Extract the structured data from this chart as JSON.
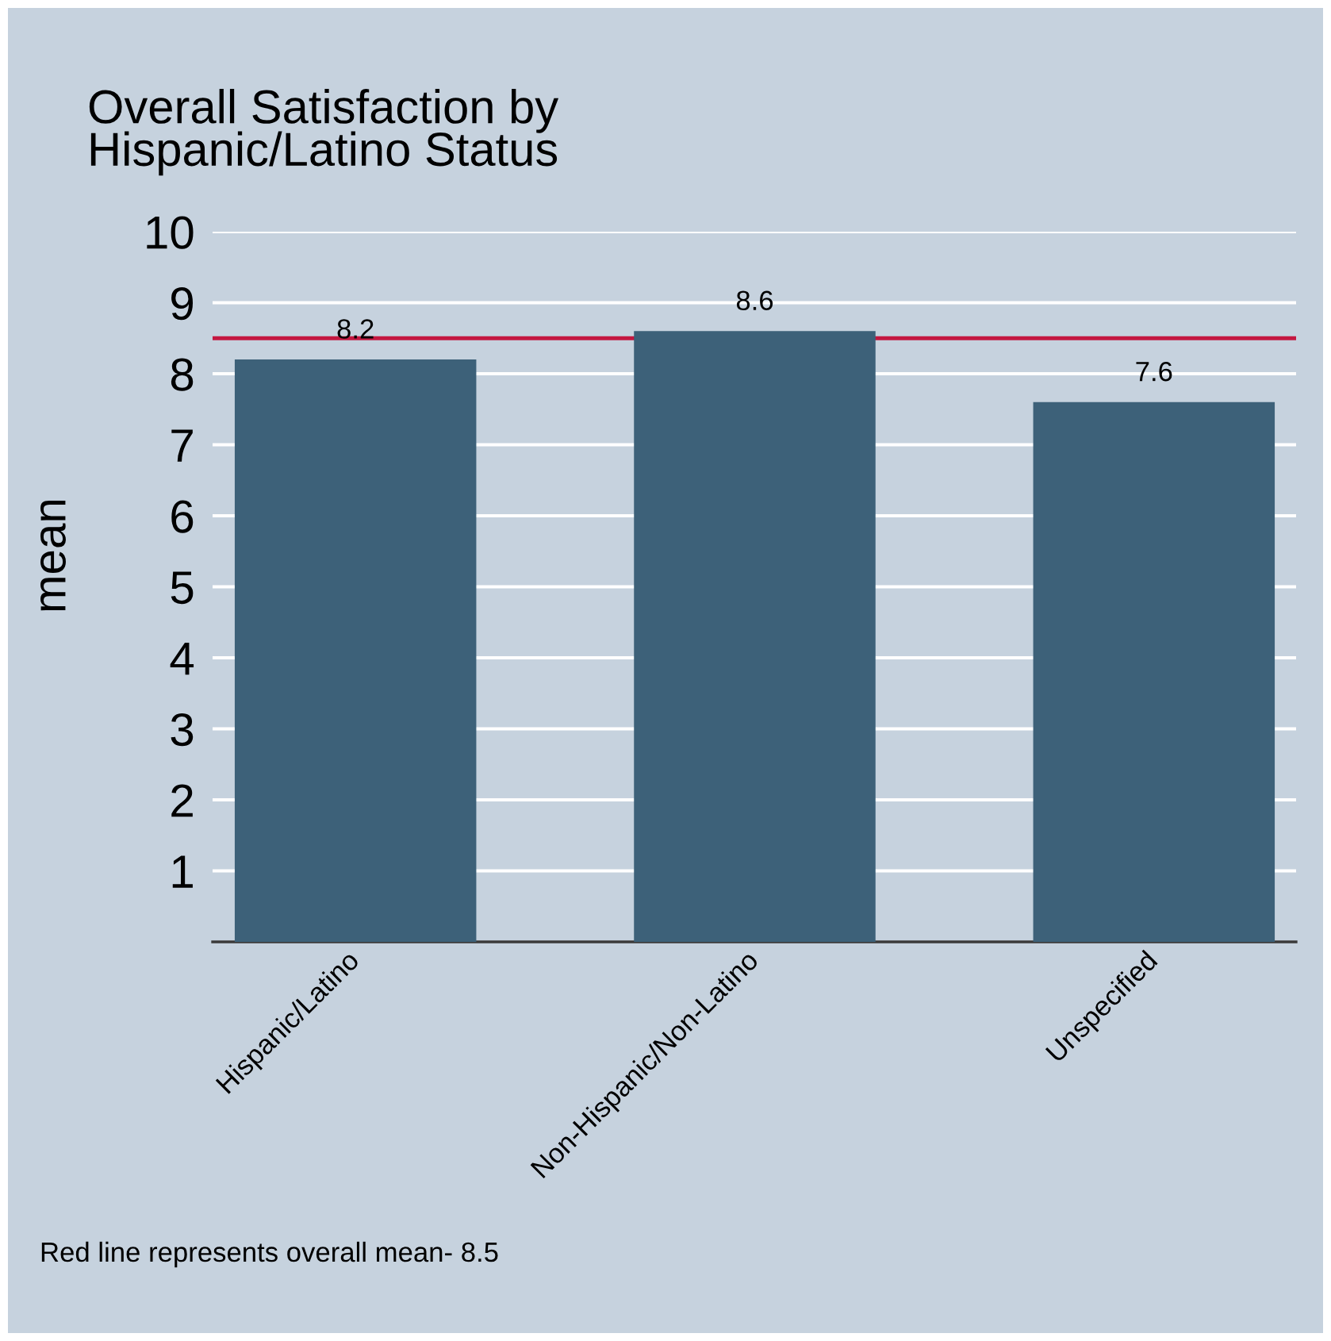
{
  "chart_data": {
    "type": "bar",
    "title": "Overall Satisfaction by\nHispanic/Latino Status",
    "ylabel": "mean",
    "categories": [
      "Hispanic/Latino",
      "Non-Hispanic/Non-Latino",
      "Unspecified"
    ],
    "values": [
      8.2,
      8.6,
      7.6
    ],
    "color": "#3d6179",
    "ylim": [
      0,
      10
    ],
    "yticks": [
      1,
      2,
      3,
      4,
      5,
      6,
      7,
      8,
      9,
      10
    ],
    "grid": "y",
    "data_labels": true,
    "ref_lines": [
      {
        "axis": "y",
        "value": 8.5,
        "color": "#c41740"
      }
    ],
    "annotations": [
      "Red line represents overall mean- 8.5"
    ]
  }
}
